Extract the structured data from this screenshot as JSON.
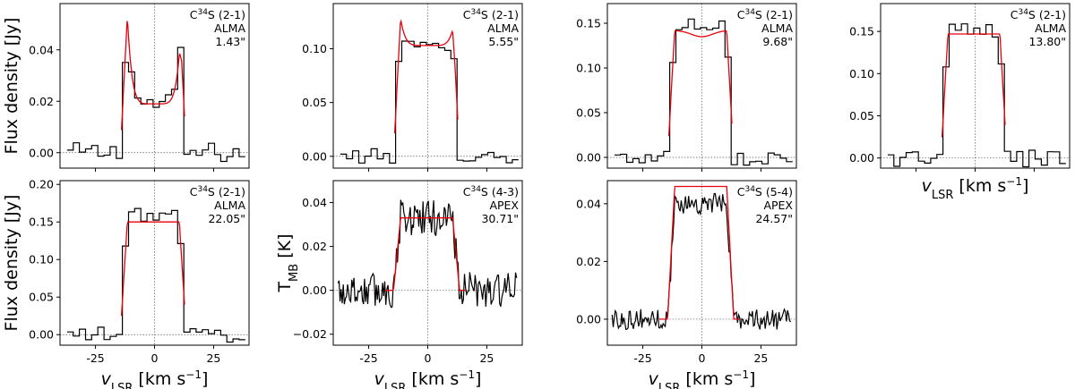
{
  "charts": [
    {
      "id": "p1",
      "type": "line",
      "title": "",
      "ylim": [
        -0.006,
        0.058
      ],
      "yticks": [
        0.0,
        0.02,
        0.04
      ],
      "ytick_labels": [
        "0.00",
        "0.02",
        "0.04"
      ],
      "xlim": [
        -40,
        40
      ],
      "xticks": [
        -25,
        0,
        25
      ],
      "xtick_labels": [
        "-25",
        "0",
        "25"
      ],
      "show_xtick_labels": false,
      "ylabel": "Flux density [Jy]",
      "xlabel": "",
      "annotation": [
        "C³⁴S (2-1)",
        "ALMA",
        "1.43\""
      ],
      "series": [
        {
          "name": "",
          "kind": "step",
          "color": "#000000",
          "width": 13,
          "peak": 0.053,
          "center": 0.019,
          "edge": 0.004,
          "noise": 0.004,
          "style": "double"
        },
        {
          "name": "",
          "kind": "model",
          "color": "#e8000b",
          "peak": 0.053,
          "center": 0.019,
          "edge": 0.0,
          "style": "double"
        }
      ]
    },
    {
      "id": "p2",
      "type": "line",
      "title": "",
      "ylim": [
        -0.011,
        0.142
      ],
      "yticks": [
        0.0,
        0.05,
        0.1
      ],
      "ytick_labels": [
        "0.00",
        "0.05",
        "0.10"
      ],
      "xlim": [
        -40,
        40
      ],
      "xticks": [
        -25,
        0,
        25
      ],
      "xtick_labels": [
        "-25",
        "0",
        "25"
      ],
      "show_xtick_labels": false,
      "ylabel": "",
      "xlabel": "",
      "annotation": [
        "C³⁴S (2-1)",
        "ALMA",
        "5.55\""
      ],
      "series": [
        {
          "name": "",
          "kind": "step",
          "color": "#000000",
          "peak": 0.127,
          "center": 0.1,
          "noise": 0.007,
          "style": "double"
        },
        {
          "name": "",
          "kind": "model",
          "color": "#e8000b",
          "peak": 0.128,
          "center": 0.103,
          "style": "double"
        }
      ]
    },
    {
      "id": "p3",
      "type": "line",
      "title": "",
      "ylim": [
        -0.012,
        0.172
      ],
      "yticks": [
        0.0,
        0.05,
        0.1,
        0.15
      ],
      "ytick_labels": [
        "0.00",
        "0.05",
        "0.10",
        "0.15"
      ],
      "xlim": [
        -40,
        40
      ],
      "xticks": [
        -25,
        0,
        25
      ],
      "xtick_labels": [
        "-25",
        "0",
        "25"
      ],
      "show_xtick_labels": false,
      "ylabel": "",
      "xlabel": "",
      "annotation": [
        "C³⁴S (2-1)",
        "ALMA",
        "9.68\""
      ],
      "series": [
        {
          "name": "",
          "kind": "step",
          "color": "#000000",
          "peak": 0.15,
          "center": 0.135,
          "noise": 0.009,
          "style": "flat"
        },
        {
          "name": "",
          "kind": "model",
          "color": "#e8000b",
          "peak": 0.142,
          "center": 0.135,
          "style": "flatdip"
        }
      ]
    },
    {
      "id": "p4",
      "type": "line",
      "title": "",
      "ylim": [
        -0.012,
        0.183
      ],
      "yticks": [
        0.0,
        0.05,
        0.1,
        0.15
      ],
      "ytick_labels": [
        "0.00",
        "0.05",
        "0.10",
        "0.15"
      ],
      "xlim": [
        -40,
        40
      ],
      "xticks": [
        -25,
        0,
        25
      ],
      "xtick_labels": [
        "-25",
        "0",
        "25"
      ],
      "show_xtick_labels": false,
      "ylabel": "",
      "xlabel": "vLSR [km s−1]",
      "annotation": [
        "C³⁴S (2-1)",
        "ALMA",
        "13.80\""
      ],
      "series": [
        {
          "name": "",
          "kind": "step",
          "color": "#000000",
          "peak": 0.15,
          "center": 0.14,
          "noise": 0.011,
          "style": "flat"
        },
        {
          "name": "",
          "kind": "model",
          "color": "#e8000b",
          "peak": 0.147,
          "center": 0.143,
          "style": "flat"
        }
      ]
    },
    {
      "id": "p5",
      "type": "line",
      "title": "",
      "ylim": [
        -0.014,
        0.205
      ],
      "yticks": [
        0.0,
        0.05,
        0.1,
        0.15,
        0.2
      ],
      "ytick_labels": [
        "0.00",
        "0.05",
        "0.10",
        "0.15",
        "0.20"
      ],
      "xlim": [
        -40,
        40
      ],
      "xticks": [
        -25,
        0,
        25
      ],
      "xtick_labels": [
        "-25",
        "0",
        "25"
      ],
      "show_xtick_labels": true,
      "ylabel": "Flux density [Jy]",
      "xlabel": "vLSR [km s−1]",
      "annotation": [
        "C³⁴S (2-1)",
        "ALMA",
        "22.05\""
      ],
      "series": [
        {
          "name": "",
          "kind": "step",
          "color": "#000000",
          "peak": 0.16,
          "center": 0.14,
          "noise": 0.01,
          "style": "flat"
        },
        {
          "name": "",
          "kind": "model",
          "color": "#e8000b",
          "peak": 0.15,
          "center": 0.15,
          "style": "flat"
        }
      ]
    },
    {
      "id": "p6",
      "type": "line",
      "title": "",
      "ylim": [
        -0.025,
        0.05
      ],
      "yticks": [
        -0.02,
        0.0,
        0.02,
        0.04
      ],
      "ytick_labels": [
        "−0.02",
        "0.00",
        "0.02",
        "0.04"
      ],
      "xlim": [
        -40,
        40
      ],
      "xticks": [
        -25,
        0,
        25
      ],
      "xtick_labels": [
        "-25",
        "0",
        "25"
      ],
      "show_xtick_labels": true,
      "ylabel": "TMB [K]",
      "xlabel": "vLSR [km s−1]",
      "annotation": [
        "C³⁴S (4-3)",
        "APEX",
        "30.71\""
      ],
      "series": [
        {
          "name": "",
          "kind": "noisy",
          "color": "#000000",
          "peak": 0.033,
          "center": 0.033,
          "noise": 0.007,
          "style": "flat"
        },
        {
          "name": "",
          "kind": "model",
          "color": "#e8000b",
          "peak": 0.033,
          "center": 0.033,
          "style": "flat",
          "smooth": true
        }
      ]
    },
    {
      "id": "p7",
      "type": "line",
      "title": "",
      "ylim": [
        -0.009,
        0.048
      ],
      "yticks": [
        0.0,
        0.02,
        0.04
      ],
      "ytick_labels": [
        "0.00",
        "0.02",
        "0.04"
      ],
      "xlim": [
        -40,
        40
      ],
      "xticks": [
        -25,
        0,
        25
      ],
      "xtick_labels": [
        "-25",
        "0",
        "25"
      ],
      "show_xtick_labels": true,
      "ylabel": "",
      "xlabel": "vLSR [km s−1]",
      "annotation": [
        "C³⁴S (5-4)",
        "APEX",
        "24.57\""
      ],
      "series": [
        {
          "name": "",
          "kind": "noisy",
          "color": "#000000",
          "peak": 0.04,
          "center": 0.038,
          "noise": 0.003,
          "style": "flat"
        },
        {
          "name": "",
          "kind": "model",
          "color": "#e8000b",
          "peak": 0.046,
          "center": 0.046,
          "style": "flat",
          "smooth": true
        }
      ]
    }
  ]
}
